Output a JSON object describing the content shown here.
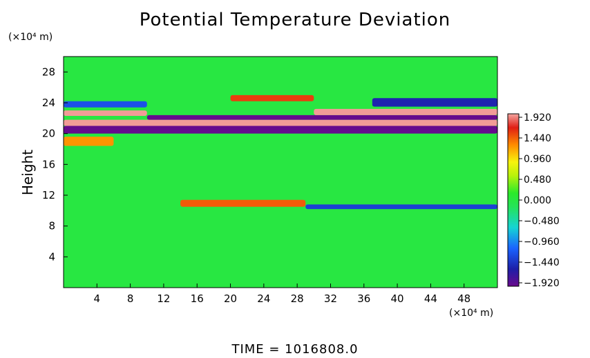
{
  "chart_data": {
    "type": "heatmap",
    "title": "Potential Temperature Deviation",
    "ylabel": "Height",
    "x_unit": "(×10⁴ m)",
    "y_unit": "(×10⁴ m)",
    "xlim": [
      0,
      52
    ],
    "ylim": [
      0,
      30
    ],
    "x_ticks": [
      4,
      8,
      12,
      16,
      20,
      24,
      28,
      32,
      36,
      40,
      44,
      48
    ],
    "y_ticks": [
      4,
      8,
      12,
      16,
      20,
      24,
      28
    ],
    "colorbar": {
      "vmin": -1.92,
      "vmax": 1.92,
      "labels": [
        "1.920",
        "1.440",
        "0.960",
        "0.480",
        "0.000",
        "-0.480",
        "-0.960",
        "-1.440",
        "-1.920"
      ]
    },
    "background_value": 0.0,
    "features": [
      {
        "x0": 0,
        "x1": 52,
        "y0": 20.0,
        "y1": 21.0,
        "value": -1.9
      },
      {
        "x0": 0,
        "x1": 52,
        "y0": 21.0,
        "y1": 21.8,
        "value": 1.9
      },
      {
        "x0": 10,
        "x1": 52,
        "y0": 21.8,
        "y1": 22.4,
        "value": -1.9
      },
      {
        "x0": 30,
        "x1": 52,
        "y0": 22.4,
        "y1": 23.2,
        "value": 1.9
      },
      {
        "x0": 0,
        "x1": 10,
        "y0": 22.3,
        "y1": 23.0,
        "value": 1.9
      },
      {
        "x0": 20,
        "x1": 30,
        "y0": 24.2,
        "y1": 25.0,
        "value": 1.5
      },
      {
        "x0": 37,
        "x1": 52,
        "y0": 23.5,
        "y1": 24.6,
        "value": -1.5
      },
      {
        "x0": 0,
        "x1": 10,
        "y0": 23.4,
        "y1": 24.2,
        "value": -1.2
      },
      {
        "x0": 14,
        "x1": 29,
        "y0": 10.5,
        "y1": 11.4,
        "value": 1.4
      },
      {
        "x0": 29,
        "x1": 52,
        "y0": 10.2,
        "y1": 10.8,
        "value": -1.3
      },
      {
        "x0": 0,
        "x1": 6,
        "y0": 18.4,
        "y1": 19.6,
        "value": 1.2
      }
    ]
  },
  "footer": {
    "time_label": "TIME  =  1016808.0"
  }
}
